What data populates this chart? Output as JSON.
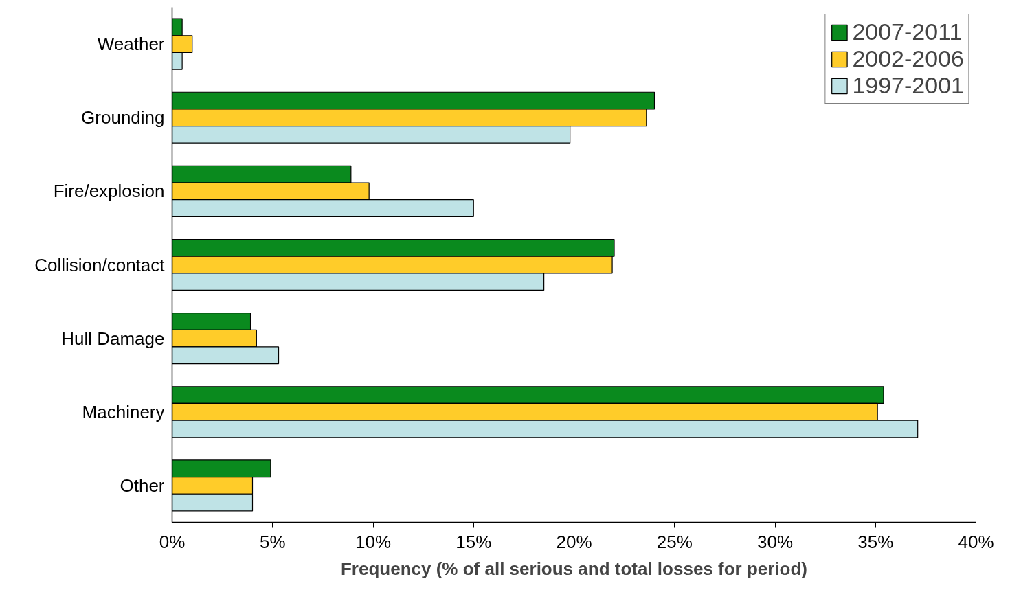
{
  "chart_data": {
    "type": "bar",
    "orientation": "horizontal",
    "xlabel": "Frequency (% of all serious and total losses for period)",
    "categories": [
      "Weather",
      "Grounding",
      "Fire/explosion",
      "Collision/contact",
      "Hull Damage",
      "Machinery",
      "Other"
    ],
    "series": [
      {
        "name": "2007-2011",
        "color": "#0a8a1e",
        "values": [
          0.5,
          24.0,
          8.9,
          22.0,
          3.9,
          35.4,
          4.9
        ]
      },
      {
        "name": "2002-2006",
        "color": "#ffcc29",
        "values": [
          1.0,
          23.6,
          9.8,
          21.9,
          4.2,
          35.1,
          4.0
        ]
      },
      {
        "name": "1997-2001",
        "color": "#bfe3e6",
        "values": [
          0.5,
          19.8,
          15.0,
          18.5,
          5.3,
          37.1,
          4.0
        ]
      }
    ],
    "xlim": [
      0,
      40
    ],
    "xticks": [
      {
        "value": 0,
        "label": "0%"
      },
      {
        "value": 5,
        "label": "5%"
      },
      {
        "value": 10,
        "label": "10%"
      },
      {
        "value": 15,
        "label": "15%"
      },
      {
        "value": 20,
        "label": "20%"
      },
      {
        "value": 25,
        "label": "25%"
      },
      {
        "value": 30,
        "label": "30%"
      },
      {
        "value": 35,
        "label": "35%"
      },
      {
        "value": 40,
        "label": "40%"
      }
    ],
    "grid": false,
    "legend": "top right"
  }
}
